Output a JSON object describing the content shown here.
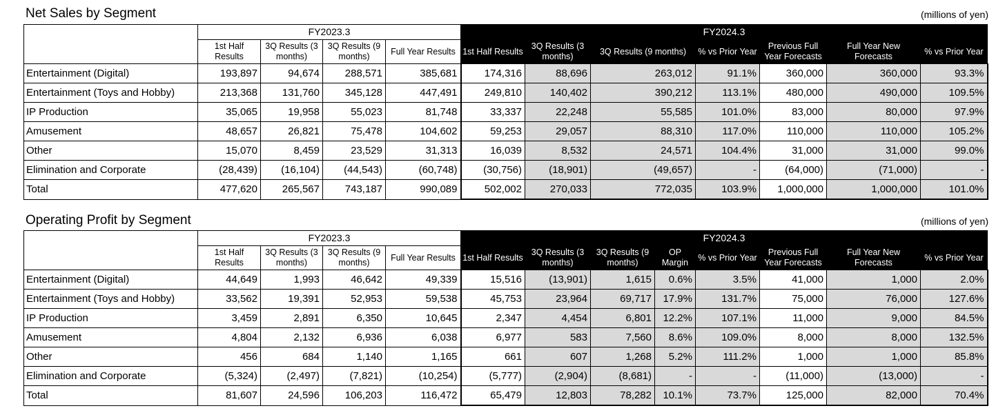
{
  "unit_label": "(millions of yen)",
  "net_sales": {
    "title": "Net Sales by Segment",
    "fy_prev": "FY2023.3",
    "fy_curr": "FY2024.3",
    "prev_headers": [
      "1st Half Results",
      "3Q Results (3 months)",
      "3Q Results (9 months)",
      "Full Year Results"
    ],
    "curr_headers": [
      "1st Half Results",
      "3Q Results (3 months)",
      "3Q Results (9 months)",
      "% vs Prior Year",
      "Previous Full Year Forecasts",
      "Full Year New Forecasts",
      "% vs Prior Year"
    ],
    "rows": [
      {
        "label": "Entertainment (Digital)",
        "values": [
          "193,897",
          "94,674",
          "288,571",
          "385,681",
          "174,316",
          "88,696",
          "263,012",
          "91.1%",
          "360,000",
          "360,000",
          "93.3%"
        ]
      },
      {
        "label": "Entertainment (Toys and Hobby)",
        "values": [
          "213,368",
          "131,760",
          "345,128",
          "447,491",
          "249,810",
          "140,402",
          "390,212",
          "113.1%",
          "480,000",
          "490,000",
          "109.5%"
        ]
      },
      {
        "label": "IP Production",
        "values": [
          "35,065",
          "19,958",
          "55,023",
          "81,748",
          "33,337",
          "22,248",
          "55,585",
          "101.0%",
          "83,000",
          "80,000",
          "97.9%"
        ]
      },
      {
        "label": "Amusement",
        "values": [
          "48,657",
          "26,821",
          "75,478",
          "104,602",
          "59,253",
          "29,057",
          "88,310",
          "117.0%",
          "110,000",
          "110,000",
          "105.2%"
        ]
      },
      {
        "label": "Other",
        "values": [
          "15,070",
          "8,459",
          "23,529",
          "31,313",
          "16,039",
          "8,532",
          "24,571",
          "104.4%",
          "31,000",
          "31,000",
          "99.0%"
        ]
      },
      {
        "label": "Elimination and Corporate",
        "values": [
          "(28,439)",
          "(16,104)",
          "(44,543)",
          "(60,748)",
          "(30,756)",
          "(18,901)",
          "(49,657)",
          "-",
          "(64,000)",
          "(71,000)",
          "-"
        ]
      },
      {
        "label": "Total",
        "values": [
          "477,620",
          "265,567",
          "743,187",
          "990,089",
          "502,002",
          "270,033",
          "772,035",
          "103.9%",
          "1,000,000",
          "1,000,000",
          "101.0%"
        ]
      }
    ]
  },
  "op_profit": {
    "title": "Operating Profit by Segment",
    "fy_prev": "FY2023.3",
    "fy_curr": "FY2024.3",
    "prev_headers": [
      "1st Half Results",
      "3Q Results (3 months)",
      "3Q Results (9 months)",
      "Full Year Results"
    ],
    "curr_headers": [
      "1st Half Results",
      "3Q Results (3 months)",
      "3Q Results (9 months)",
      "OP Margin",
      "% vs Prior Year",
      "Previous Full Year Forecasts",
      "Full Year New Forecasts",
      "% vs Prior Year"
    ],
    "rows": [
      {
        "label": "Entertainment (Digital)",
        "values": [
          "44,649",
          "1,993",
          "46,642",
          "49,339",
          "15,516",
          "(13,901)",
          "1,615",
          "0.6%",
          "3.5%",
          "41,000",
          "1,000",
          "2.0%"
        ]
      },
      {
        "label": "Entertainment (Toys and Hobby)",
        "values": [
          "33,562",
          "19,391",
          "52,953",
          "59,538",
          "45,753",
          "23,964",
          "69,717",
          "17.9%",
          "131.7%",
          "75,000",
          "76,000",
          "127.6%"
        ]
      },
      {
        "label": "IP Production",
        "values": [
          "3,459",
          "2,891",
          "6,350",
          "10,645",
          "2,347",
          "4,454",
          "6,801",
          "12.2%",
          "107.1%",
          "11,000",
          "9,000",
          "84.5%"
        ]
      },
      {
        "label": "Amusement",
        "values": [
          "4,804",
          "2,132",
          "6,936",
          "6,038",
          "6,977",
          "583",
          "7,560",
          "8.6%",
          "109.0%",
          "8,000",
          "8,000",
          "132.5%"
        ]
      },
      {
        "label": "Other",
        "values": [
          "456",
          "684",
          "1,140",
          "1,165",
          "661",
          "607",
          "1,268",
          "5.2%",
          "111.2%",
          "1,000",
          "1,000",
          "85.8%"
        ]
      },
      {
        "label": "Elimination and Corporate",
        "values": [
          "(5,324)",
          "(2,497)",
          "(7,821)",
          "(10,254)",
          "(5,777)",
          "(2,904)",
          "(8,681)",
          "-",
          "-",
          "(11,000)",
          "(13,000)",
          "-"
        ]
      },
      {
        "label": "Total",
        "values": [
          "81,607",
          "24,596",
          "106,203",
          "116,472",
          "65,479",
          "12,803",
          "78,282",
          "10.1%",
          "73.7%",
          "125,000",
          "82,000",
          "70.4%"
        ]
      }
    ]
  }
}
